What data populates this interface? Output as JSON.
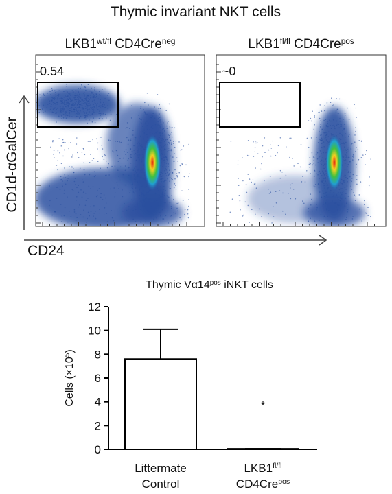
{
  "figure": {
    "title": "Thymic invariant NKT cells",
    "y_axis_label": "CD1d-αGalCer",
    "x_axis_label": "CD24",
    "panels": [
      {
        "label": [
          {
            "text": "LKB1",
            "sup": false
          },
          {
            "text": "wt/fl",
            "sup": true
          },
          {
            "text": " CD4Cre",
            "sup": false
          },
          {
            "text": "neg",
            "sup": true
          }
        ],
        "gate_label": "0.54"
      },
      {
        "label": [
          {
            "text": "LKB1",
            "sup": false
          },
          {
            "text": "fl/fl",
            "sup": true
          },
          {
            "text": " CD4Cre",
            "sup": false
          },
          {
            "text": "pos",
            "sup": true
          }
        ],
        "gate_label": "~0"
      }
    ]
  },
  "chart_data": {
    "type": "bar",
    "title": [
      {
        "text": "Thymic Vα14",
        "sup": false
      },
      {
        "text": "pos",
        "sup": true
      },
      {
        "text": " iNKT cells",
        "sup": false
      }
    ],
    "y_label": [
      {
        "text": "Cells (×10",
        "sup": false
      },
      {
        "text": "5",
        "sup": true
      },
      {
        "text": ")",
        "sup": false
      }
    ],
    "categories": [
      [
        [
          {
            "text": "Littermate",
            "sup": false
          }
        ],
        [
          {
            "text": "Control",
            "sup": false
          }
        ]
      ],
      [
        [
          {
            "text": "LKB1",
            "sup": false
          },
          {
            "text": "fl/fl",
            "sup": true
          }
        ],
        [
          {
            "text": "CD4Cre",
            "sup": false
          },
          {
            "text": "pos",
            "sup": true
          }
        ]
      ]
    ],
    "values": [
      7.6,
      0.05
    ],
    "errors": [
      2.5,
      0
    ],
    "color": "#ffffff",
    "edge_color": "#000000",
    "ylim": [
      0,
      12
    ],
    "yticks": [
      0,
      2,
      4,
      6,
      8,
      10,
      12
    ],
    "annotations": [
      {
        "text": "*",
        "category": 1
      }
    ]
  }
}
